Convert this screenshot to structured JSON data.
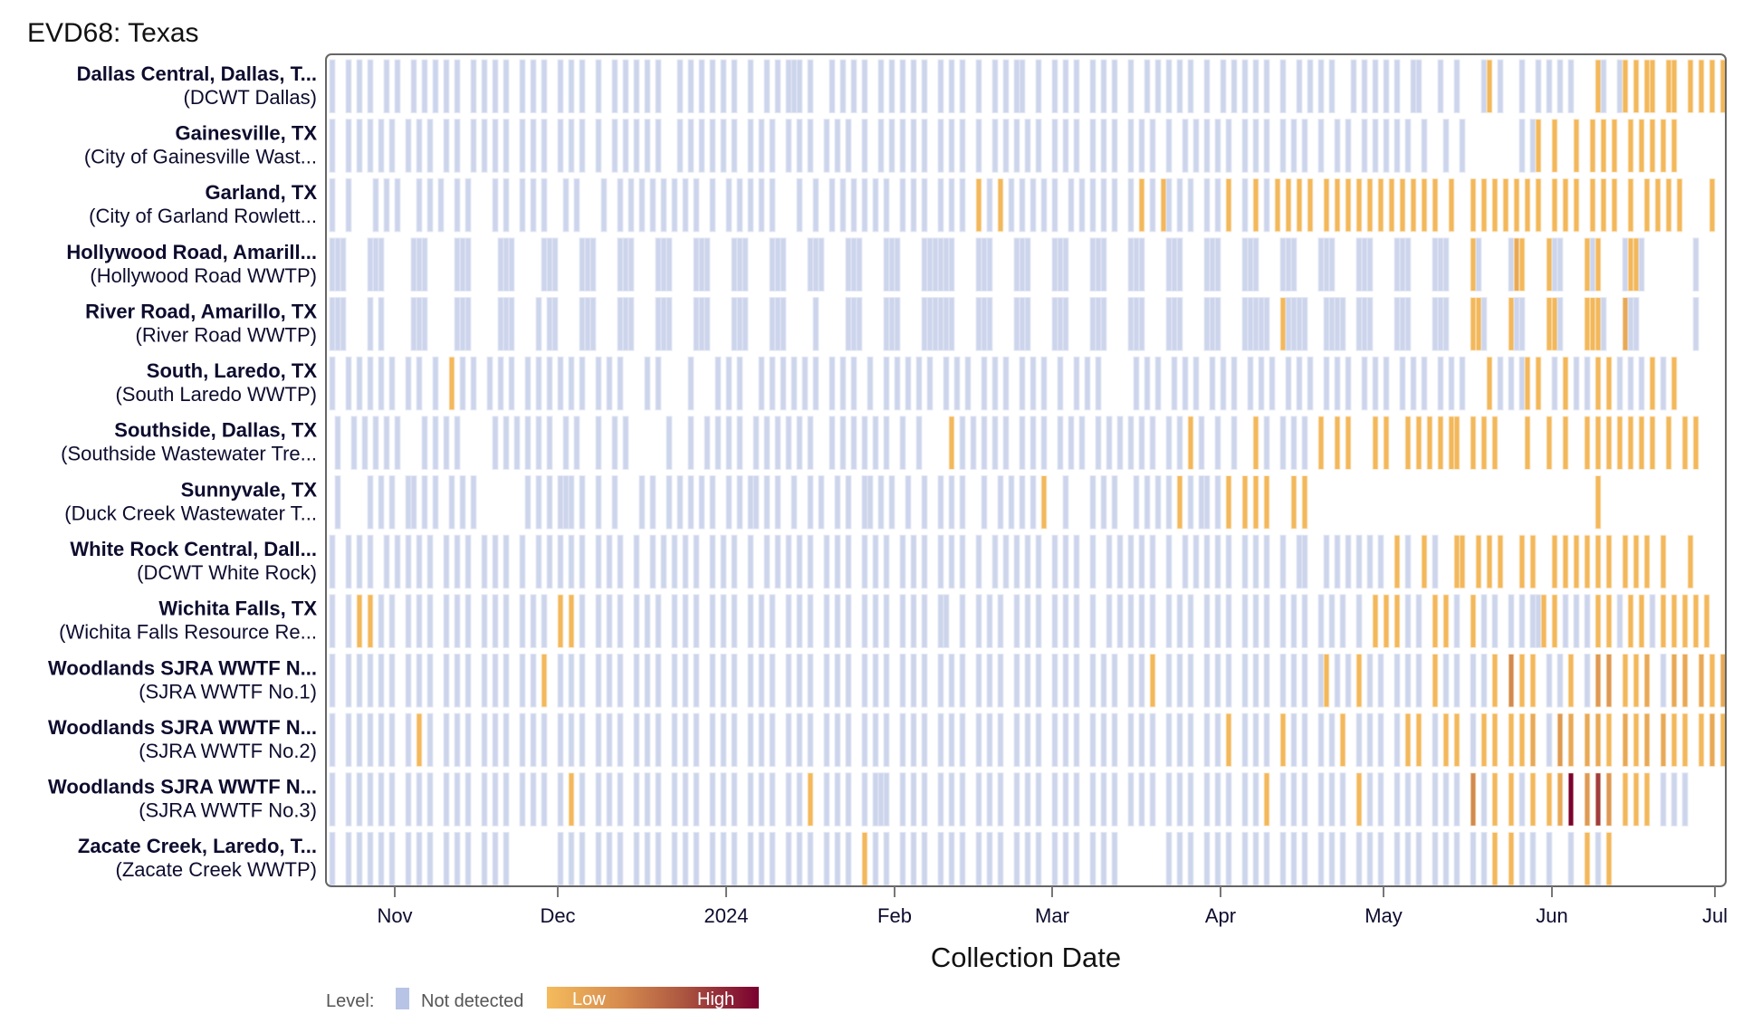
{
  "chart_data": {
    "type": "heatmap",
    "title": "EVD68: Texas",
    "xlabel": "Collection Date",
    "ylabel": "",
    "start_date": "2023-10-20",
    "end_date": "2024-07-03",
    "x_ticks": [
      {
        "label": "Nov",
        "date": "2023-11-01"
      },
      {
        "label": "Dec",
        "date": "2023-12-01"
      },
      {
        "label": "2024",
        "date": "2024-01-01"
      },
      {
        "label": "Feb",
        "date": "2024-02-01"
      },
      {
        "label": "Mar",
        "date": "2024-03-01"
      },
      {
        "label": "Apr",
        "date": "2024-04-01"
      },
      {
        "label": "May",
        "date": "2024-05-01"
      },
      {
        "label": "Jun",
        "date": "2024-06-01"
      },
      {
        "label": "Jul",
        "date": "2024-07-01"
      }
    ],
    "encoding_note": "Each site series is a day-by-day sequence starting at start_date: '.' = no sample, 'n' = not detected, '1'-'9' = detected level (1 low to 9 high)",
    "legend": {
      "label": "Level:",
      "not_detected": "Not detected",
      "low": "Low",
      "high": "High",
      "placement": "bottom-left"
    },
    "colors": {
      "not_detected": "#cdd5ec",
      "low": "#f3b85b",
      "mid": "#c87a4a",
      "high": "#7a0030"
    },
    "sites": [
      {
        "name": "Dallas Central, Dallas, T...",
        "plant": "(DCWT Dallas)",
        "series": "n..n.n. n..n.n. .n.n.n. n.n..n. n.n.n.. n.n.n.. n.n.n.. n..n.n. n.n.n.. .n.n.n. n.n.n.. n..n.n. nnn.n.. .n.n.n. n..n.n. n.n.n.. n.n.n.. n..n.n. nn..n.. n.n.n.. n.n.n.. n..n.n. n.n.n.. n..n.n. n.n.n.. n..n.n. n.n...n .n.n.n. n..nn.. .n..n.. ..n1.n. ..n..n. n.n.n.. ..1n..n 1.1.11. .11..1. 1.1.1.1 .1.1..."
      },
      {
        "name": "Gainesville, TX",
        "plant": "(City of Gainesville Wast...",
        "series": "n..n.n. n.n.n.. n.n.n.. n.n..n. n.n.n.. n.n.n.. n.n.n.. n..n.n. n.n.n.. .n.n.n. n.n.n.. n.n.n.. n.n.n.. n.n.n.. n..n.n. n.n.n.. n.n.n.. n..n.n. n.n.n.. n.n.n.. n.n.n.. n.n.n.. n..n.n. n.n.n.. n.n.n.. n.n.n.. n..n.n. .n.n.n. n.n..n. ..n..n. ....... ..n.n1. .1...1. .1.1.1. .1.1.1. 1.1...."
      },
      {
        "name": "Garland, TX",
        "plant": "(City of Garland Rowlett...",
        "series": "n..n... .n.n.n. ..n.n.n ..n.n.. ..n.n.. n.n.n.. .n.n... .n..n.n .n.n.n. n.n.n.. n..n.n. n.n.n.. ..n..n. .n.n.n. n.n.n.. n.n.n.. n.n.n.. 1.n.1.n .n.n.n. n..n.n. n.n.n.. n.1.n.1 n.n.n.. n.n.1.. n.1.n.1 .1.1.1. .1.1.1. 1.1.1.1 .1.1.1. 1..1... 1.1.1.1 .1.1.1. .1.1.1 ..1.1.1 ..1..1. 1.1.1.. ...1..."
      },
      {
        "name": "Hollywood Road, Amarill...",
        "plant": "(Hollywood Road WWTP)",
        "series": "nnn.... nnn.... .nnn... ..nnn.. ...nnn. ....nnn ....nnn ....nnn ....nnn ....nnn ....nnn ....nnn ....nnn ....nnn ....nnn ....nnn nnn.... nnn.... nnn.... nnn.... nnn.... nnn.... nnn.... nnn.... nnn.... nnn.... nnn.... nnn.... nnn.... nnn.... 1n..... n21.... 1nn.... 1n1.... n11n... ......n ......."
      },
      {
        "name": "River Road, Amarillo, TX",
        "plant": "(River Road WWTP)",
        "series": "nnn.... n.n.... .nnn... ..nnn.. ...nnn. ...n.nn ....nnn ....nnn ....nnn ....nnn ....nnn ....nnn .....n. ....nnn ....nnn ....nnn nnn.... nnn.... nnn.... nnn.... nnn.... nnn.... nnn.... nnn.... nnnnn.. 1nnnn.. .nnnn.. nnn.... nnn.... nnn.... 11n.... 1nn.... 11n.... 111n... 2nn.... ......n ......."
      },
      {
        "name": "South, Laredo, TX",
        "plant": "(South Laredo WWTP)",
        "series": "n..n.n. n.n.n.. n.n..n. .1.n.n. .n.n.n. .n.n.n. n.n.n.. n.n.n.. ..n.n.. ...n.... n.n.n.. .n.n.n. n.n.n.. n.n.n.. n..n.n. n.n.n.. n.n.n.. n.n.n.. n.n.n.. n..n.n. n...... n.n.n.. n.n.n.. n.n.n.. n.n.n.. n.n.n.. n.n.n.. n.n.n.. n.n.n.. n.n.n.. ..1.n.n .n1.1.. n.1.n.n .1.1.n. n.n.1.n .1....."
      },
      {
        "name": "Southside, Dallas, TX",
        "plant": "(Southside Wastewater Tre...",
        "series": ".n..n.n .n.n.n. ...n.n. n.n.... ..n.n.n .n.n.n. .n.n... n..n.n. ......n ...n..n .n.n.n. .n.n.n. n.n.n.. .n.n.n. n.n.n.. n..n... ..1.n.n .n.n.n. .n.n.n. .n.n.n. .n.n.n. n.n.n.. n.n.1.n ..n..n. ..1.n.. n.n.n.. 1..1.1. ...1.1. ..1.1.1 .1.11.. 1.1.1.. ...1... 1..1... 1.1.1.1 .1.1.1. .1..1.1 ......."
      },
      {
        "name": "Sunnyvale, TX",
        "plant": "(Duck Creek Wastewater T...",
        "series": ".n..... n.n.n.. nn.n.n. .n.n.n. ....... .n.n.n. nnn.n.. n..n... .n.n..n .n.n.n. n..n.n. nn.n.n. .n..n.n ..n.n.. nn.n.n. .n..n.. n.n.n.. .n..n.n .n.n.1. ..n.... n.n.n.. .n.n.n. n.1.n.n n.n.1.. 1.1.1.. ..1.1.. ....... ....... ....... ....... ....... ....... ....... ..1...."
      },
      {
        "name": "White Rock Central, Dall...",
        "plant": "(DCWT White Rock)",
        "series": "n..n.n. n..n.n. n.n.n.. n.n.n.. n.n.n.. n..n.n. n.n.n.. n.n.n.. n..n.n. n.n.n.. n.n.n.. n..n.n. n.n.n.. n.n.n.. n.n.n.. n.n.n.. n.n.n.. n..n.n. n.n.n.. n.n.n.. n..n.n. n.n.n.. n..n.n. n.n.n.. n.n.n.. n..nn.. .n.n.n. n.n.n.. 1.n..1. n...11. .1.1.1. ..1.1.. .1.1.1. 1.1.1.. 1.1.1.. 1....1. ......."
      },
      {
        "name": "Wichita Falls, TX",
        "plant": "(Wichita Falls Resource Re...",
        "series": "n..n.1. 1.n.n.. n.n.n.. n.n.n.. n.n.n.. n.n.n.. 1.1.n.. n.n.n.. n.n.n.. n.n.n.. n.n.n.. n.n.n.. n.n.n.. n.n.n.. n.n.n.. n.n.n.. nn..n.. n.n.n.. n.n.n.. n.n.n.. n..n.n. n.n.n.. n.n.n.. n.n.n.. n.n.n.. n.n.n.. n.n.n.. n..1.1. 1.n.n.. 1.1.n.. 1.n.n.. n.n.nn1 .1.n.n. n.1.1.n .1.1.n. 1.1.1.1 .1....."
      },
      {
        "name": "Woodlands SJRA WWTF N...",
        "plant": "(SJRA WWTF No.1)",
        "series": "n..n.n. n.n.n.. n.n.n.. n.n.n.. n.n.n.. n.n.1.. n.n.n.. n.n.n.. n.n.n.. n.n.n.. n.n.n.. n.n.n.. n.n.n.. n.n.n.. n.n.n.. n.n.n.. n.n.n.. n.n.n.. n.n.n.. n.n.n.. n.n.n.. n.n.1.. n.n.n.. n.n.n.. n.n.n.. n.n.n.. n1.n.n. 1.n.n.. n.n.n.. 1.n.n.. n.n.1.. 4.1.1.. n.n.1.. n.3.3.. 1.1.2.. n.2.2.. 2.1.2.."
      },
      {
        "name": "Woodlands SJRA WWTF N...",
        "plant": "(SJRA WWTF No.2)",
        "series": "n..n.n. n.n.n.. n.1.n.. n.n.n.. n.n.n.. n.n.n.. n.n.n.. n.n.n.. n.n.n.. n.n.n.. n.n.n.. n.n.n.. n.n.n.. n.n.n.. n.n.n.. n.n.n.. n.n.n.. n.n.n.. n.n.n.. n.n.n.. n.n.n.. n.n.n.. n.n.n.. n.n.1.. n.n.n.. 1.n.n.. n.n.1.. n.n.n.. n.1.1.. n.1.1.. n.1.1.. 1.1.2.. n.3.2.. 2.2.1.. 2.1.2.. 2.1.1.. 1.2.1.."
      },
      {
        "name": "Woodlands SJRA WWTF N...",
        "plant": "(SJRA WWTF No.3)",
        "series": "n..n.n. n.n.n.. n.n.n.. n.n.n.. n.n.n.. n.n.n.. n.1.n.. n.n.n.. n.n.n.. n.n.n.. n.n.n.. n.n.n.. n.n.1.. n.n.n.. n.nnn.. n.n.n.. n.n.n.. n.n.n.. n.n.n.. n.n.n.. n.n.n.. n.n.n.. n.n.n.. n.n.n.. n.n.1.. n.n.n.. n.n.n.. 1.n.n.. n.n.n.. n.n.n.. 4.n.1.. 1.n.1.. 1.2.9.. 3.7.3.. 1.1.1.. n.n.n.. ......."
      },
      {
        "name": "Zacate Creek, Laredo, T...",
        "plant": "(Zacate Creek WWTP)",
        "series": "n..n.n. n.n.n.. n.n.n.. n.n.n.. n.n.n.. ....... n.n.n.. n.n.n.. n.n.n.. n.n.n.. n.n.n.. n.n.n.. n.n.n.. n.n.n.. 1.n.n.. n.n.n.. n.n.n.. n.n.n.. n.n.n.. n.n.n.. n.n.n.. ....... n.n.n.. n.n.n.. n.n.n.. n.n.n.. n.n.n.. n.n.n.. n.n.n.. n.n.n.. n.n.1.. 1.n.n.. n...n.. 1.n.1.. ......."
      }
    ]
  }
}
